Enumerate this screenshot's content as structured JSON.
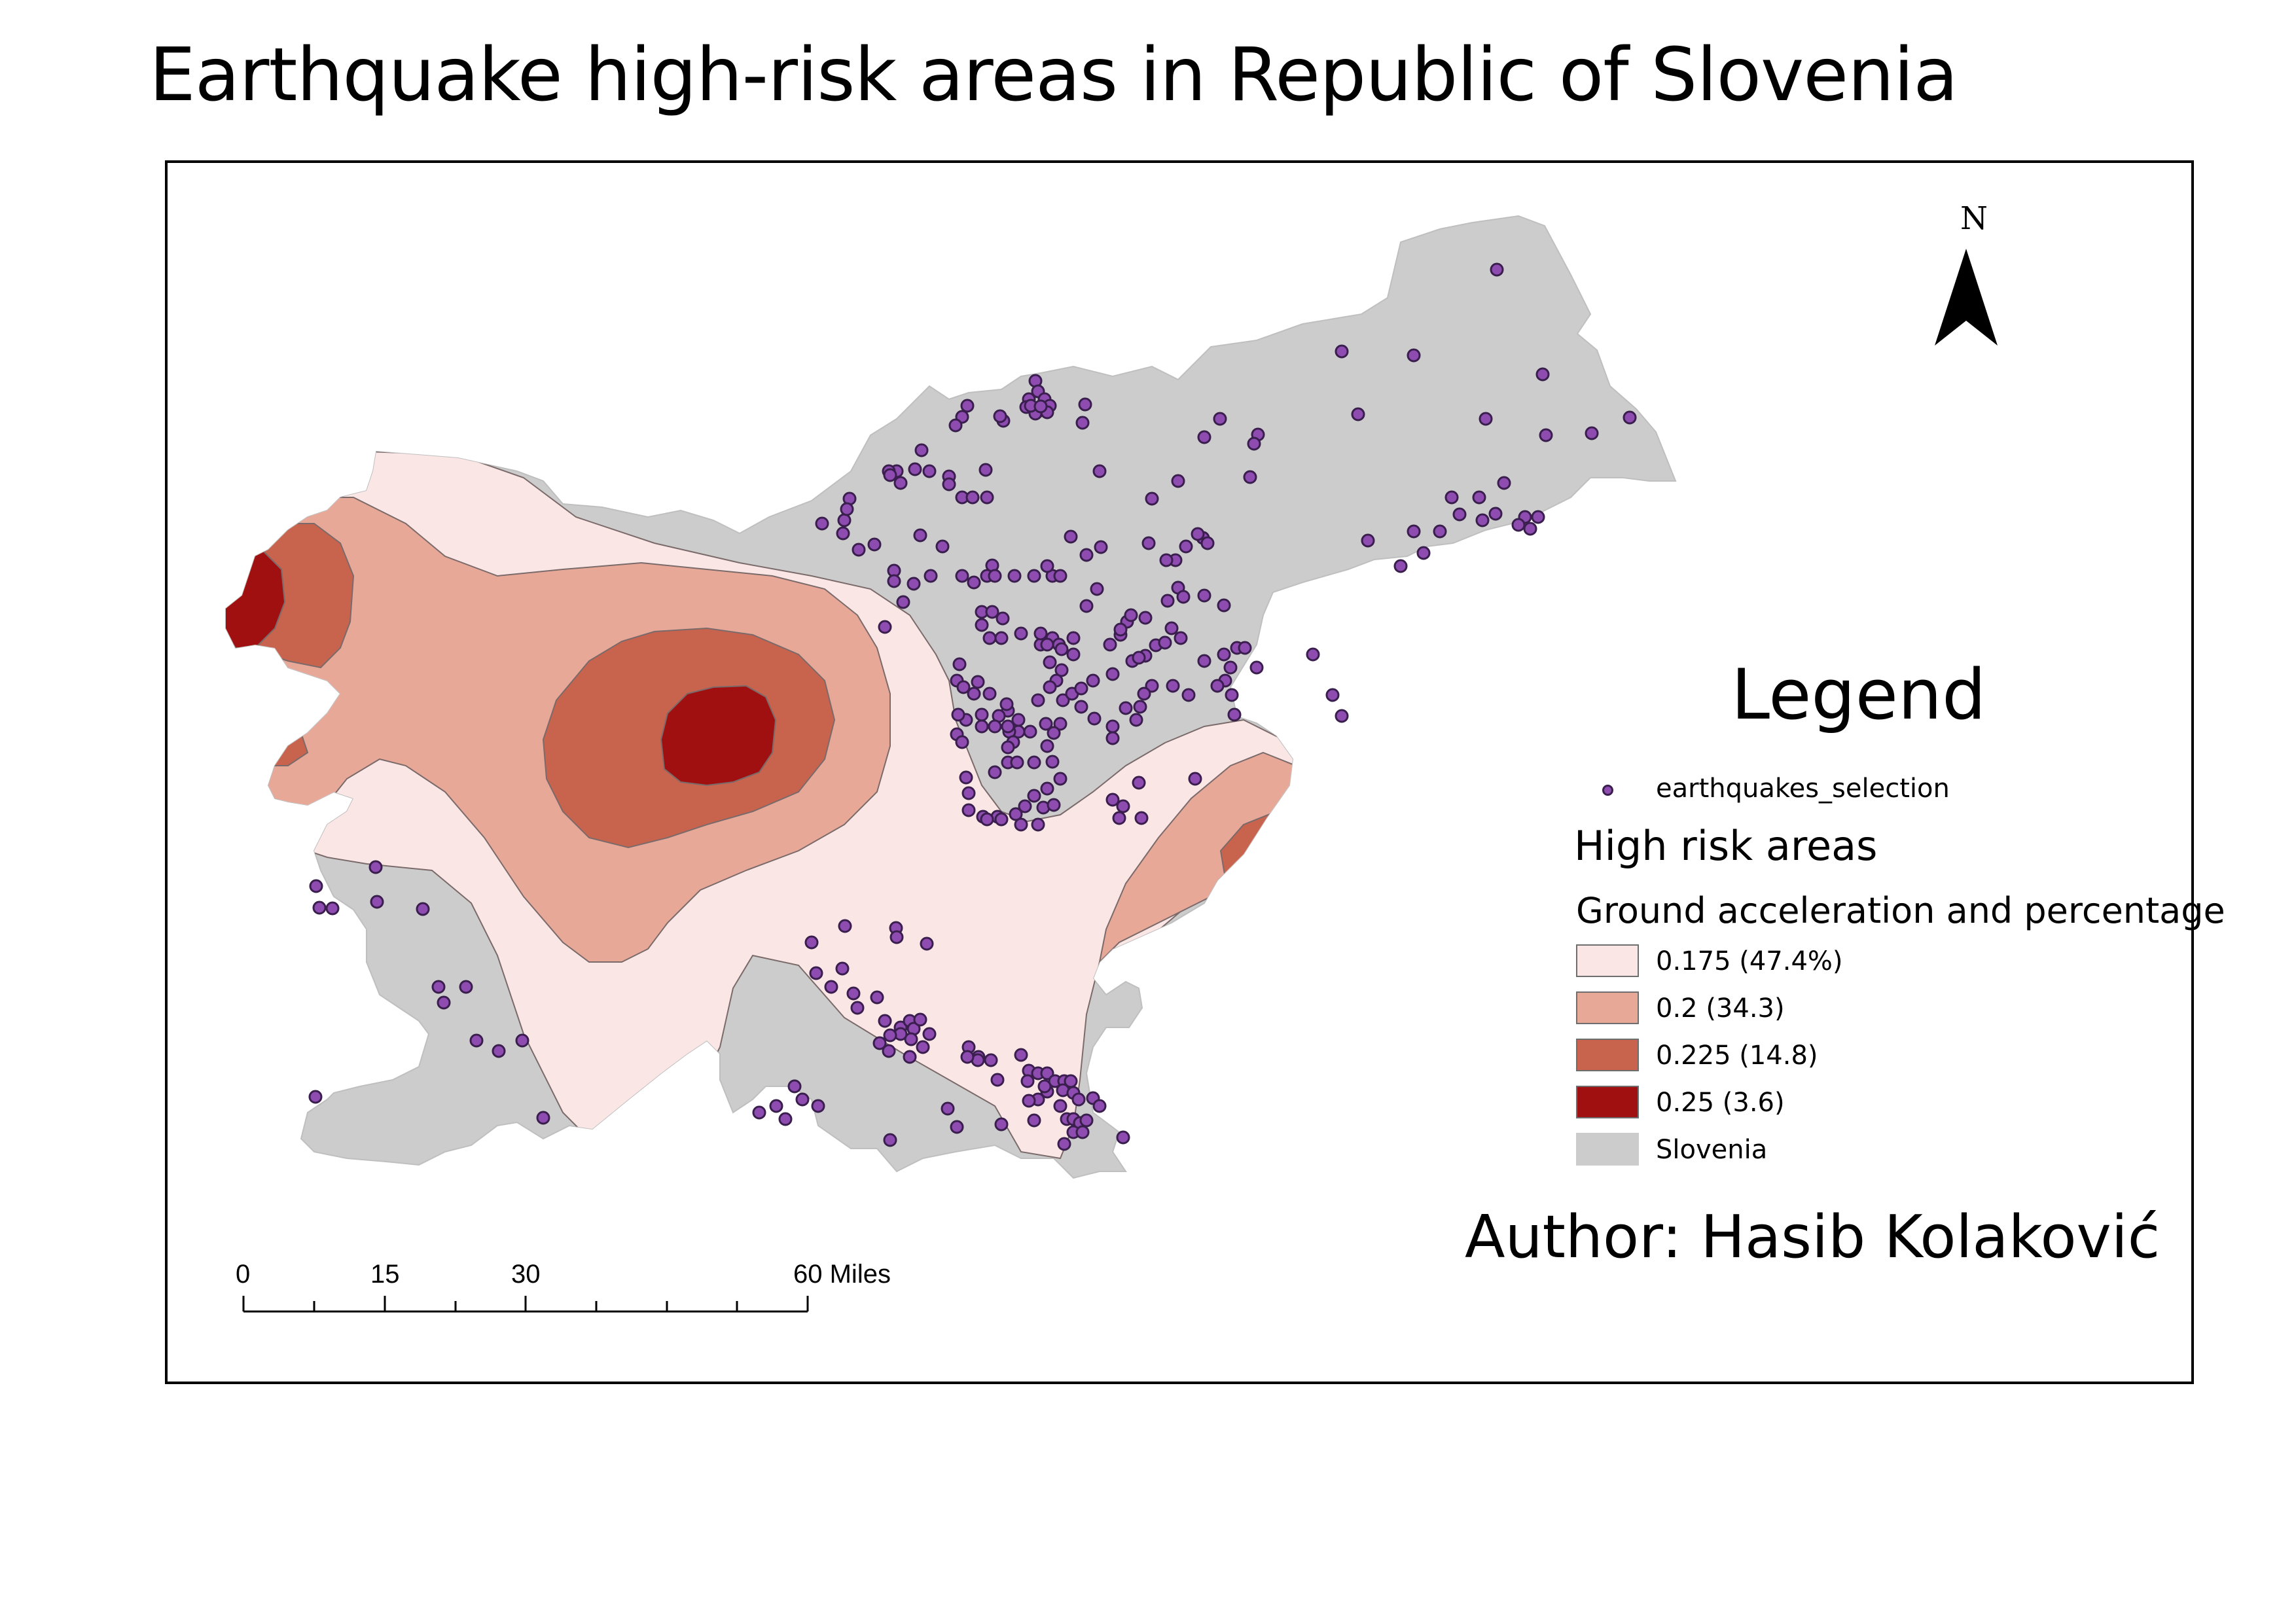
{
  "title": "Earthquake high-risk areas in Republic of Slovenia",
  "legend": {
    "title": "Legend",
    "point_layer": "earthquakes_selection",
    "group_title": "High risk areas",
    "field_title": "Ground acceleration and percentage",
    "classes": [
      {
        "label": "0.175 (47.4%)",
        "color": "#fbe6e6"
      },
      {
        "label": "0.2 (34.3)",
        "color": "#e8a898"
      },
      {
        "label": "0.225 (14.8)",
        "color": "#c8634e"
      },
      {
        "label": "0.25 (3.6)",
        "color": "#a01010"
      }
    ],
    "base_layer": {
      "label": "Slovenia",
      "color": "#cccccc"
    }
  },
  "north_arrow": {
    "label": "N",
    "icon": "north-arrow-icon"
  },
  "scalebar": {
    "labels": [
      "0",
      "15",
      "30",
      "60 Miles"
    ]
  },
  "author": "Author: Hasib Kolaković",
  "colors": {
    "points": "#8e4bb0",
    "point_outline": "#3a1f4e",
    "boundary": "#6e6e6e"
  }
}
